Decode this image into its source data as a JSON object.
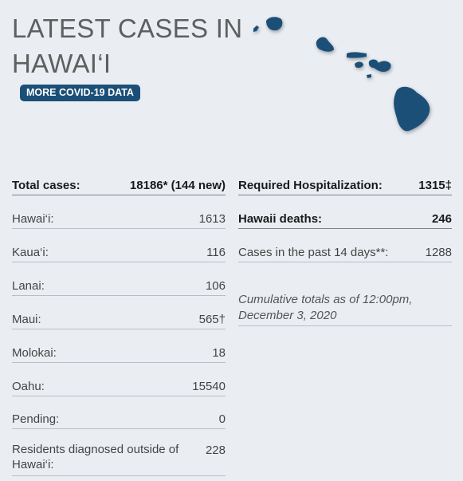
{
  "header": {
    "title_line1": "LATEST CASES IN",
    "title_line2": "HAWAI‘I",
    "button_label": "MORE COVID-19 DATA"
  },
  "map": {
    "icon": "hawaii-islands-map-icon",
    "color": "#1b4f78"
  },
  "left_stats": [
    {
      "label": "Total cases:",
      "value": "18186* (144 new)"
    },
    {
      "label": "Hawai‘i:",
      "value": "1613"
    },
    {
      "label": "Kaua‘i:",
      "value": "116"
    },
    {
      "label": "Lanai:",
      "value": "106"
    },
    {
      "label": "Maui:",
      "value": "565†"
    },
    {
      "label": "Molokai:",
      "value": "18"
    },
    {
      "label": "Oahu:",
      "value": "15540"
    },
    {
      "label": "Pending:",
      "value": "0"
    },
    {
      "label": "Residents diagnosed outside of Hawai‘i:",
      "value": "228"
    }
  ],
  "right_stats": [
    {
      "label": "Required Hospitalization:",
      "value": "1315‡"
    },
    {
      "label": "Hawaii deaths:",
      "value": "246"
    },
    {
      "label": "Cases in the past 14 days**:",
      "value": "1288"
    }
  ],
  "note": "Cumulative totals as of 12:00pm, December 3, 2020"
}
